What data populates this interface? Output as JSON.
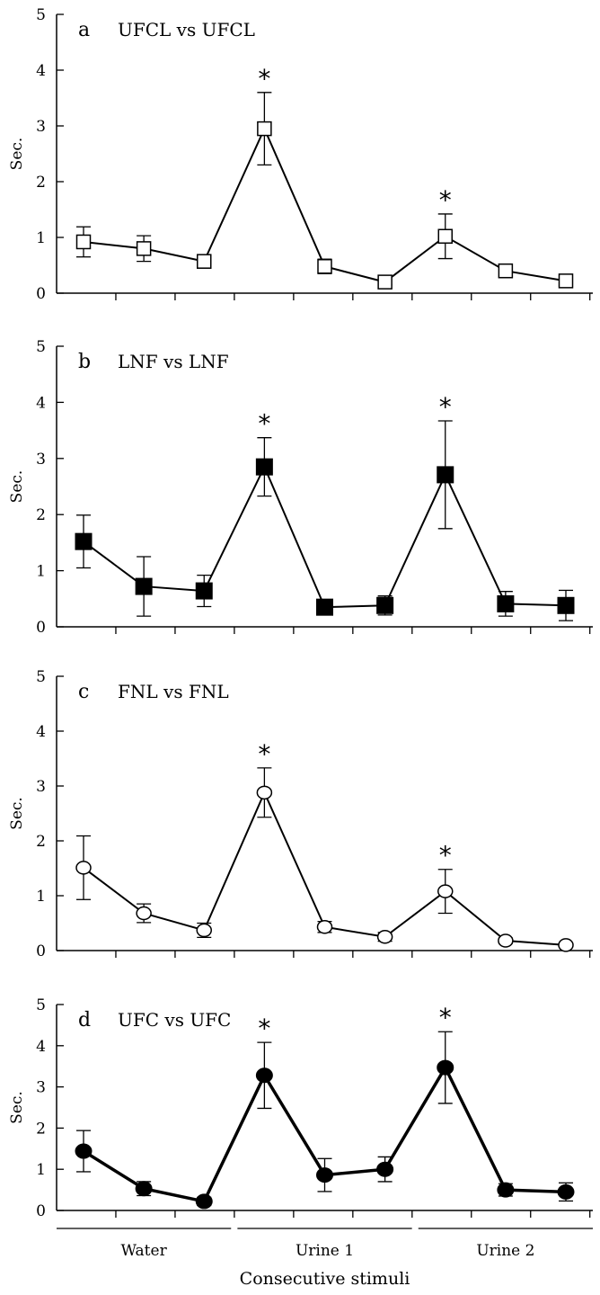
{
  "chart_data": [
    {
      "type": "line",
      "panel_letter": "a",
      "title": "UFCL vs UFCL",
      "ylabel": "Sec.",
      "ylim": [
        0,
        5
      ],
      "yticks": [
        "0",
        "1",
        "2",
        "3",
        "4",
        "5"
      ],
      "x": [
        1,
        2,
        3,
        4,
        5,
        6,
        7,
        8,
        9
      ],
      "series": [
        {
          "values": [
            0.92,
            0.8,
            0.57,
            2.95,
            0.48,
            0.2,
            1.02,
            0.4,
            0.22
          ],
          "error": [
            0.27,
            0.23,
            0.12,
            0.65,
            0.13,
            0.05,
            0.4,
            0.12,
            0.05
          ],
          "marker": "open-square",
          "color": "#000000",
          "stars": [
            4,
            7
          ]
        }
      ]
    },
    {
      "type": "line",
      "panel_letter": "b",
      "title": "LNF vs LNF",
      "ylabel": "Sec.",
      "ylim": [
        0,
        5
      ],
      "yticks": [
        "0",
        "1",
        "2",
        "3",
        "4",
        "5"
      ],
      "x": [
        1,
        2,
        3,
        4,
        5,
        6,
        7,
        8,
        9
      ],
      "series": [
        {
          "values": [
            1.52,
            0.72,
            0.64,
            2.85,
            0.35,
            0.38,
            2.71,
            0.41,
            0.38
          ],
          "error": [
            0.47,
            0.53,
            0.28,
            0.52,
            0.12,
            0.17,
            0.96,
            0.22,
            0.27
          ],
          "marker": "filled-square",
          "color": "#000000",
          "stars": [
            4,
            7
          ]
        }
      ]
    },
    {
      "type": "line",
      "panel_letter": "c",
      "title": "FNL vs FNL",
      "ylabel": "Sec.",
      "ylim": [
        0,
        5
      ],
      "yticks": [
        "0",
        "1",
        "2",
        "3",
        "4",
        "5"
      ],
      "x": [
        1,
        2,
        3,
        4,
        5,
        6,
        7,
        8,
        9
      ],
      "series": [
        {
          "values": [
            1.51,
            0.68,
            0.37,
            2.88,
            0.43,
            0.25,
            1.08,
            0.18,
            0.1
          ],
          "error": [
            0.58,
            0.17,
            0.13,
            0.45,
            0.1,
            0.08,
            0.4,
            0.05,
            0.03
          ],
          "marker": "open-circle",
          "color": "#000000",
          "stars": [
            4,
            7
          ]
        }
      ]
    },
    {
      "type": "line",
      "panel_letter": "d",
      "title": "UFC vs UFC",
      "ylabel": "Sec.",
      "ylim": [
        0,
        5
      ],
      "yticks": [
        "0",
        "1",
        "2",
        "3",
        "4",
        "5"
      ],
      "x": [
        1,
        2,
        3,
        4,
        5,
        6,
        7,
        8,
        9
      ],
      "xlabel": "Consecutive stimuli",
      "groups": [
        "Water",
        "Urine 1",
        "Urine 2"
      ],
      "series": [
        {
          "values": [
            1.44,
            0.53,
            0.22,
            3.28,
            0.86,
            1.0,
            3.47,
            0.5,
            0.45
          ],
          "error": [
            0.5,
            0.17,
            0.1,
            0.8,
            0.4,
            0.3,
            0.87,
            0.15,
            0.22
          ],
          "marker": "filled-circle",
          "color": "#000000",
          "stars": [
            4,
            7
          ]
        }
      ]
    }
  ]
}
